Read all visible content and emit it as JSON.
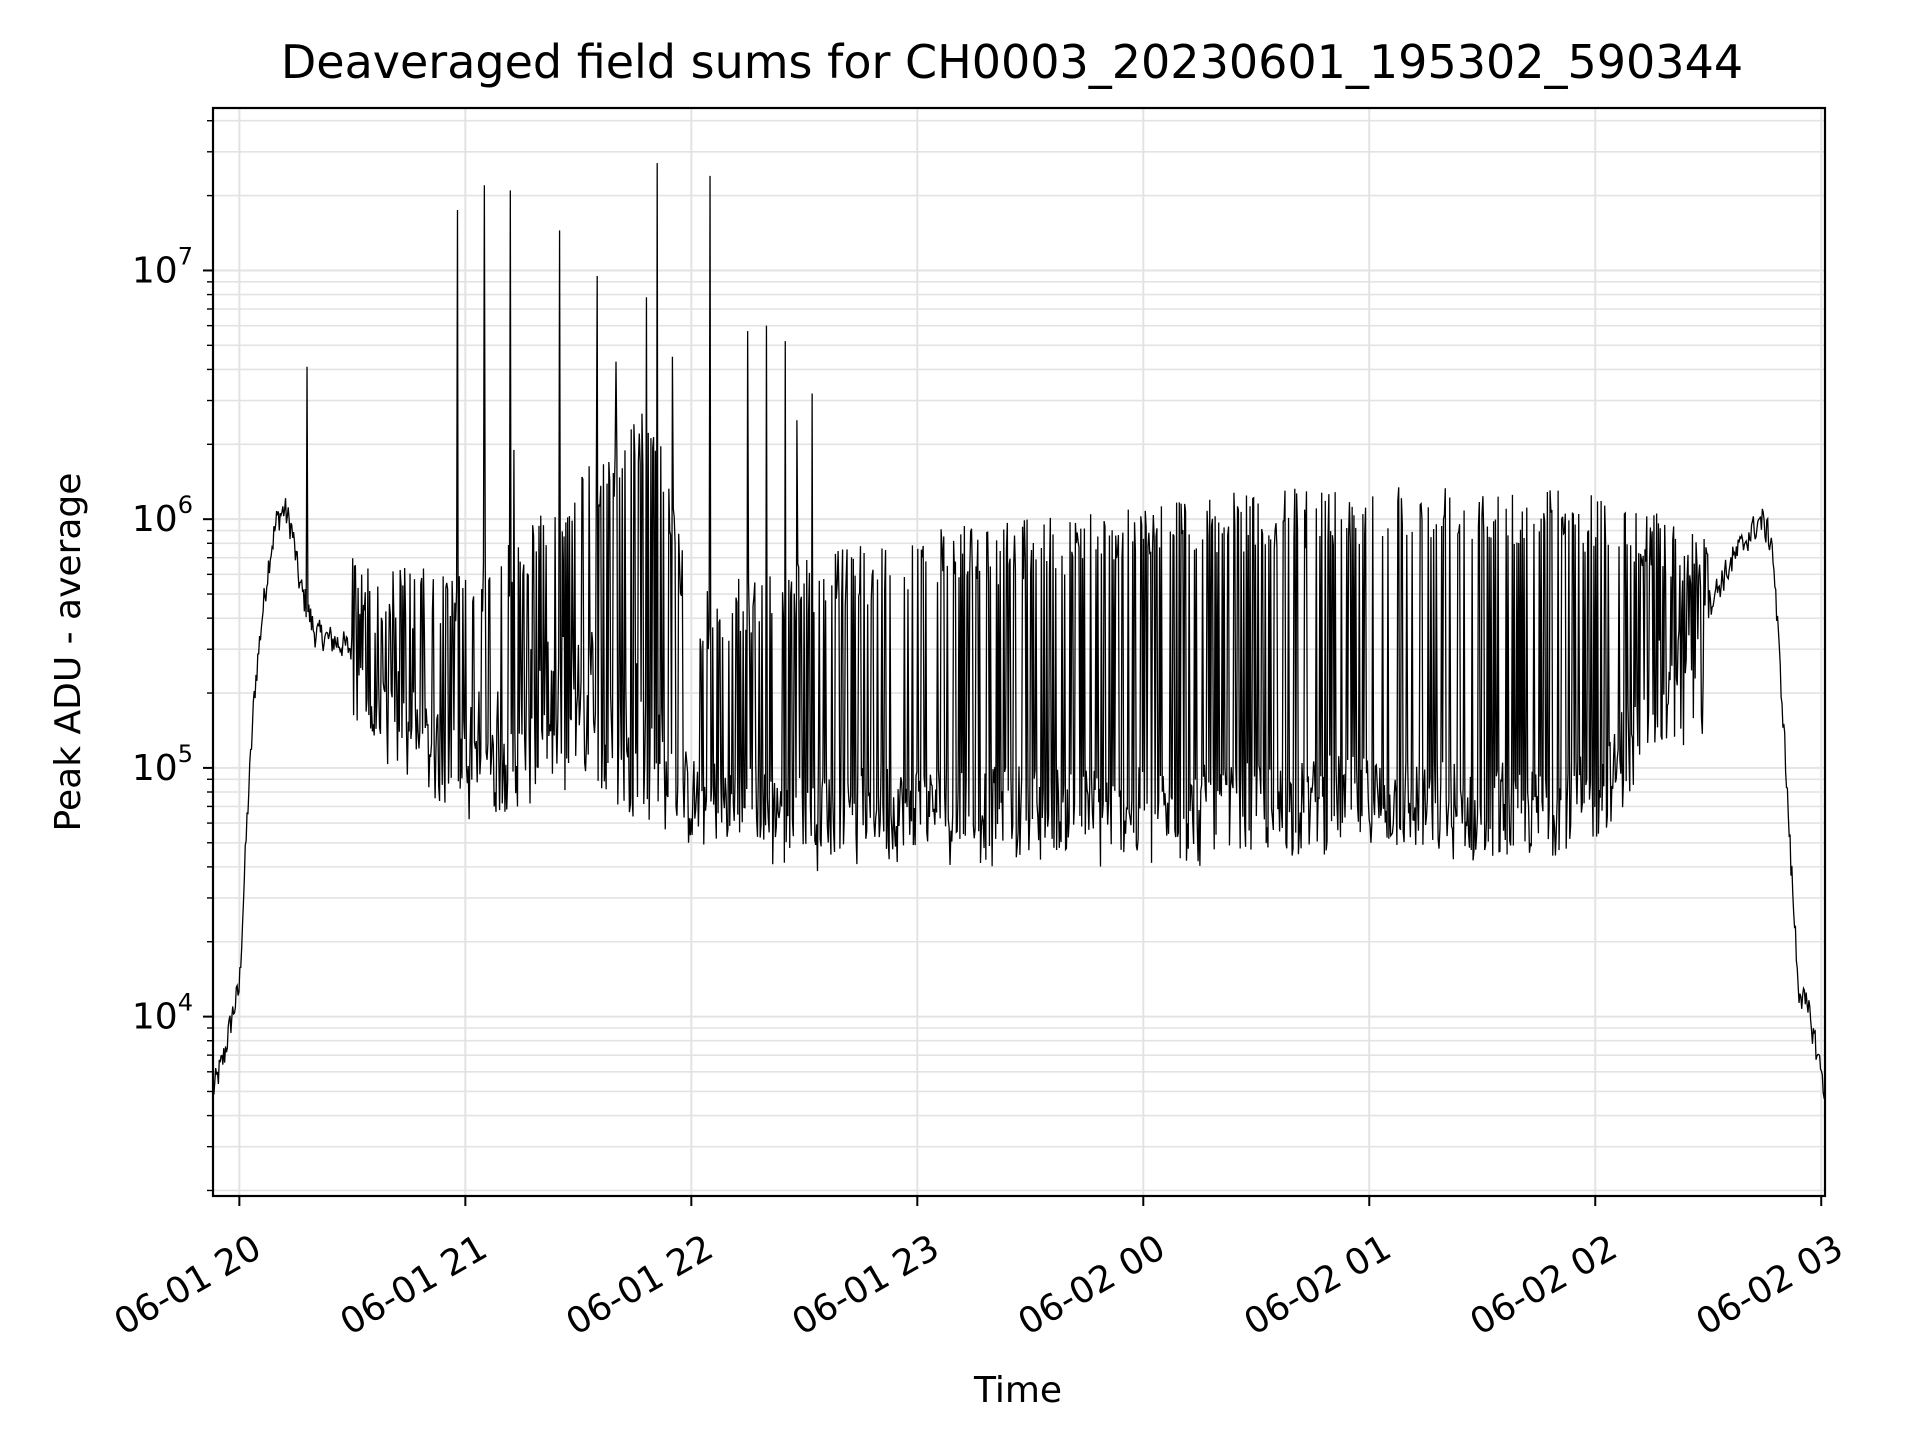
{
  "chart_data": {
    "type": "line",
    "title": "Deaveraged field sums for CH0003_20230601_195302_590344",
    "xlabel": "Time",
    "ylabel": "Peak ADU - average",
    "yscale": "log",
    "ylim": [
      1900,
      45000000
    ],
    "xlim": [
      "2023-06-01 19:53",
      "2023-06-02 03:01"
    ],
    "grid": true,
    "line_color": "#000000",
    "x_ticks": [
      "06-01 20",
      "06-01 21",
      "06-01 22",
      "06-01 23",
      "06-02 00",
      "06-02 01",
      "06-02 02",
      "06-02 03"
    ],
    "x_tick_times": [
      "2023-06-01 20:00",
      "2023-06-01 21:00",
      "2023-06-01 22:00",
      "2023-06-01 23:00",
      "2023-06-02 00:00",
      "2023-06-02 01:00",
      "2023-06-02 02:00",
      "2023-06-02 03:00"
    ],
    "y_ticks": [
      {
        "base": "10",
        "exp": "4",
        "value": 10000
      },
      {
        "base": "10",
        "exp": "5",
        "value": 100000
      },
      {
        "base": "10",
        "exp": "6",
        "value": 1000000
      },
      {
        "base": "10",
        "exp": "7",
        "value": 10000000
      }
    ],
    "series": [
      {
        "baseline": [
          [
            "2023-06-01 19:53",
            5000
          ],
          [
            "2023-06-01 19:56",
            7000
          ],
          [
            "2023-06-01 19:58",
            10000
          ],
          [
            "2023-06-01 20:00",
            13000
          ],
          [
            "2023-06-01 20:02",
            60000
          ],
          [
            "2023-06-01 20:04",
            200000
          ],
          [
            "2023-06-01 20:06",
            400000
          ],
          [
            "2023-06-01 20:08",
            700000
          ],
          [
            "2023-06-01 20:10",
            1000000
          ],
          [
            "2023-06-01 20:12",
            1100000
          ],
          [
            "2023-06-01 20:14",
            900000
          ],
          [
            "2023-06-01 20:16",
            550000
          ],
          [
            "2023-06-01 20:20",
            350000
          ],
          [
            "2023-06-01 20:30",
            300000
          ],
          [
            "2023-06-01 20:40",
            200000
          ],
          [
            "2023-06-01 20:50",
            130000
          ],
          [
            "2023-06-01 21:00",
            120000
          ],
          [
            "2023-06-01 21:15",
            180000
          ],
          [
            "2023-06-01 21:30",
            250000
          ],
          [
            "2023-06-01 21:45",
            280000
          ],
          [
            "2023-06-01 21:55",
            80000
          ],
          [
            "2023-06-01 22:10",
            65000
          ],
          [
            "2023-06-01 22:30",
            60000
          ],
          [
            "2023-06-01 23:00",
            65000
          ],
          [
            "2023-06-01 23:30",
            62000
          ],
          [
            "2023-06-02 00:00",
            60000
          ],
          [
            "2023-06-02 00:30",
            65000
          ],
          [
            "2023-06-02 01:00",
            75000
          ],
          [
            "2023-06-02 01:30",
            70000
          ],
          [
            "2023-06-02 01:50",
            70000
          ],
          [
            "2023-06-02 02:00",
            80000
          ],
          [
            "2023-06-02 02:10",
            130000
          ],
          [
            "2023-06-02 02:20",
            250000
          ],
          [
            "2023-06-02 02:30",
            450000
          ],
          [
            "2023-06-02 02:38",
            750000
          ],
          [
            "2023-06-02 02:44",
            1000000
          ],
          [
            "2023-06-02 02:47",
            800000
          ],
          [
            "2023-06-02 02:50",
            150000
          ],
          [
            "2023-06-02 02:52",
            40000
          ],
          [
            "2023-06-02 02:54",
            13000
          ],
          [
            "2023-06-02 02:57",
            10000
          ],
          [
            "2023-06-02 03:00",
            6000
          ],
          [
            "2023-06-02 03:01",
            5000
          ]
        ],
        "envelope_high": [
          [
            "2023-06-01 20:30",
            700000
          ],
          [
            "2023-06-01 21:00",
            600000
          ],
          [
            "2023-06-01 21:30",
            1500000
          ],
          [
            "2023-06-01 21:50",
            3000000
          ],
          [
            "2023-06-01 22:00",
            500000
          ],
          [
            "2023-06-01 22:30",
            700000
          ],
          [
            "2023-06-01 23:00",
            900000
          ],
          [
            "2023-06-01 23:30",
            1000000
          ],
          [
            "2023-06-02 00:00",
            1200000
          ],
          [
            "2023-06-02 00:30",
            1300000
          ],
          [
            "2023-06-02 01:00",
            1400000
          ],
          [
            "2023-06-02 01:30",
            1450000
          ],
          [
            "2023-06-02 02:00",
            1300000
          ],
          [
            "2023-06-02 02:30",
            900000
          ]
        ],
        "envelope_low": [
          [
            "2023-06-01 20:30",
            120000
          ],
          [
            "2023-06-01 21:00",
            60000
          ],
          [
            "2023-06-01 21:30",
            80000
          ],
          [
            "2023-06-01 22:00",
            50000
          ],
          [
            "2023-06-01 23:00",
            48000
          ],
          [
            "2023-06-02 00:00",
            45000
          ],
          [
            "2023-06-02 01:00",
            50000
          ],
          [
            "2023-06-02 01:30",
            40000
          ],
          [
            "2023-06-02 02:00",
            50000
          ],
          [
            "2023-06-02 02:20",
            120000
          ]
        ],
        "spikes": [
          [
            "2023-06-01 20:18",
            4100000
          ],
          [
            "2023-06-01 20:58",
            17500000
          ],
          [
            "2023-06-01 21:05",
            22000000
          ],
          [
            "2023-06-01 21:12",
            21000000
          ],
          [
            "2023-06-01 21:13",
            1900000
          ],
          [
            "2023-06-01 21:25",
            14500000
          ],
          [
            "2023-06-01 21:35",
            9500000
          ],
          [
            "2023-06-01 21:40",
            4300000
          ],
          [
            "2023-06-01 21:48",
            7800000
          ],
          [
            "2023-06-01 21:51",
            27000000
          ],
          [
            "2023-06-01 21:55",
            4500000
          ],
          [
            "2023-06-01 22:05",
            24000000
          ],
          [
            "2023-06-01 22:15",
            5700000
          ],
          [
            "2023-06-01 22:20",
            6000000
          ],
          [
            "2023-06-01 22:25",
            5200000
          ],
          [
            "2023-06-01 22:28",
            2500000
          ],
          [
            "2023-06-01 22:32",
            3200000
          ]
        ]
      }
    ]
  }
}
